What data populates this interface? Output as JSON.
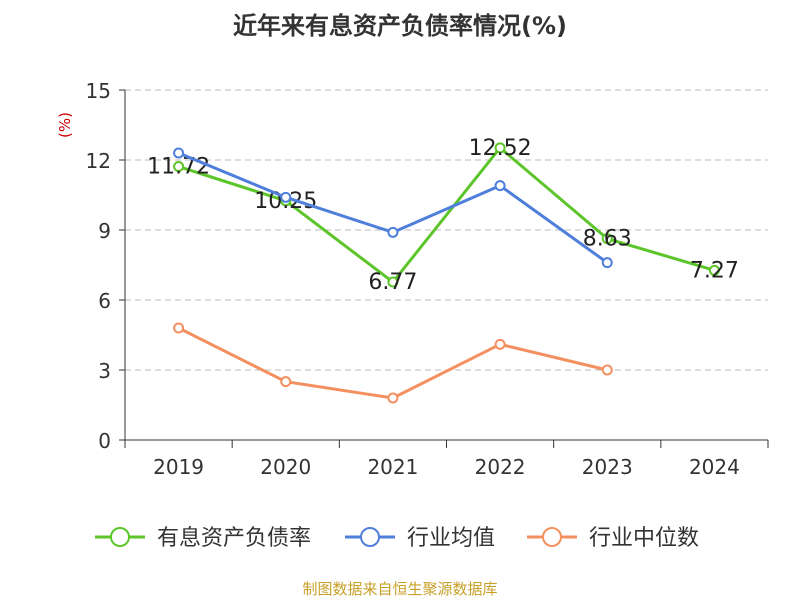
{
  "chart_data": {
    "type": "line",
    "title": "近年来有息资产负债率情况(%)",
    "ylabel": "(%)",
    "categories": [
      "2019",
      "2020",
      "2021",
      "2022",
      "2023",
      "2024"
    ],
    "ylim": [
      0,
      15
    ],
    "yticks": [
      "0",
      "3",
      "6",
      "9",
      "12",
      "15"
    ],
    "grid": true,
    "legend_position": "bottom",
    "series": [
      {
        "name": "有息资产负债率",
        "color": "#5cc52a",
        "values": [
          11.72,
          10.25,
          6.77,
          12.52,
          8.63,
          7.27
        ],
        "labels": [
          "11.72",
          "10.25",
          "6.77",
          "12.52",
          "8.63",
          "7.27"
        ]
      },
      {
        "name": "行业均值",
        "color": "#4f7fdb",
        "values": [
          12.3,
          10.4,
          8.9,
          10.9,
          7.6,
          null
        ]
      },
      {
        "name": "行业中位数",
        "color": "#f49060",
        "values": [
          4.8,
          2.5,
          1.8,
          4.1,
          3.0,
          null
        ]
      }
    ]
  },
  "footer": "制图数据来自恒生聚源数据库"
}
